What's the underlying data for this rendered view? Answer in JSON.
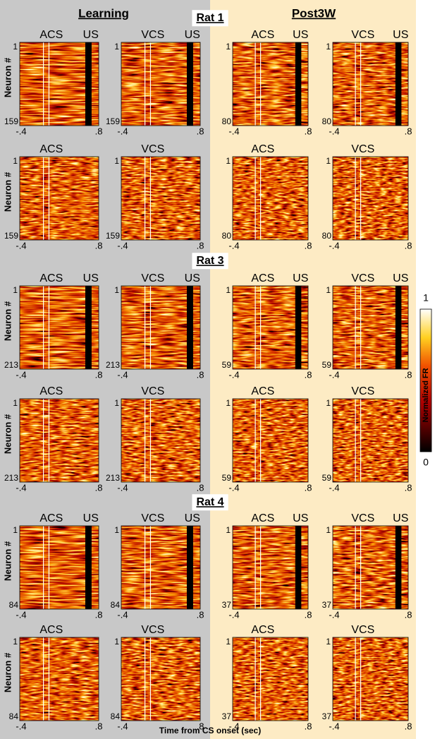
{
  "header": {
    "left": "Learning",
    "right": "Post3W"
  },
  "y_axis_label": "Neuron #",
  "x_axis_label": "Time from CS onset (sec)",
  "colorbar": {
    "top": "1",
    "bottom": "0",
    "label": "Normalized FR"
  },
  "rats": [
    {
      "label": "Rat 1",
      "rows": [
        {
          "panels": [
            {
              "title": "ACS",
              "us": "US",
              "first": "1",
              "last": "159",
              "x_start": "-.4",
              "x_end": ".8"
            },
            {
              "title": "VCS",
              "us": "US",
              "first": "1",
              "last": "159",
              "x_start": "-.4",
              "x_end": ".8"
            },
            {
              "title": "ACS",
              "us": "US",
              "first": "1",
              "last": "80",
              "x_start": "-.4",
              "x_end": ".8"
            },
            {
              "title": "VCS",
              "us": "US",
              "first": "1",
              "last": "80",
              "x_start": "-.4",
              "x_end": ".8"
            }
          ]
        },
        {
          "panels": [
            {
              "title": "ACS",
              "first": "1",
              "last": "159",
              "x_start": "-.4",
              "x_end": ".8"
            },
            {
              "title": "VCS",
              "first": "1",
              "last": "159",
              "x_start": "-.4",
              "x_end": ".8"
            },
            {
              "title": "ACS",
              "first": "1",
              "last": "80",
              "x_start": "-.4",
              "x_end": ".8"
            },
            {
              "title": "VCS",
              "first": "1",
              "last": "80",
              "x_start": "-.4",
              "x_end": ".8"
            }
          ]
        }
      ]
    },
    {
      "label": "Rat 3",
      "rows": [
        {
          "panels": [
            {
              "title": "ACS",
              "us": "US",
              "first": "1",
              "last": "213",
              "x_start": "-.4",
              "x_end": ".8"
            },
            {
              "title": "VCS",
              "us": "US",
              "first": "1",
              "last": "213",
              "x_start": "-.4",
              "x_end": ".8"
            },
            {
              "title": "ACS",
              "us": "US",
              "first": "1",
              "last": "59",
              "x_start": "-.4",
              "x_end": ".8"
            },
            {
              "title": "VCS",
              "us": "US",
              "first": "1",
              "last": "59",
              "x_start": "-.4",
              "x_end": ".8"
            }
          ]
        },
        {
          "panels": [
            {
              "title": "ACS",
              "first": "1",
              "last": "213",
              "x_start": "-.4",
              "x_end": ".8"
            },
            {
              "title": "VCS",
              "first": "1",
              "last": "213",
              "x_start": "-.4",
              "x_end": ".8"
            },
            {
              "title": "ACS",
              "first": "1",
              "last": "59",
              "x_start": "-.4",
              "x_end": ".8"
            },
            {
              "title": "VCS",
              "first": "1",
              "last": "59",
              "x_start": "-.4",
              "x_end": ".8"
            }
          ]
        }
      ]
    },
    {
      "label": "Rat 4",
      "rows": [
        {
          "panels": [
            {
              "title": "ACS",
              "us": "US",
              "first": "1",
              "last": "84",
              "x_start": "-.4",
              "x_end": ".8"
            },
            {
              "title": "VCS",
              "us": "US",
              "first": "1",
              "last": "84",
              "x_start": "-.4",
              "x_end": ".8"
            },
            {
              "title": "ACS",
              "us": "US",
              "first": "1",
              "last": "37",
              "x_start": "-.4",
              "x_end": ".8"
            },
            {
              "title": "VCS",
              "us": "US",
              "first": "1",
              "last": "37",
              "x_start": "-.4",
              "x_end": ".8"
            }
          ]
        },
        {
          "panels": [
            {
              "title": "ACS",
              "first": "1",
              "last": "84",
              "x_start": "-.4",
              "x_end": ".8"
            },
            {
              "title": "VCS",
              "first": "1",
              "last": "84",
              "x_start": "-.4",
              "x_end": ".8"
            },
            {
              "title": "ACS",
              "first": "1",
              "last": "37",
              "x_start": "-.4",
              "x_end": ".8"
            },
            {
              "title": "VCS",
              "first": "1",
              "last": "37",
              "x_start": "-.4",
              "x_end": ".8"
            }
          ]
        }
      ]
    }
  ]
}
